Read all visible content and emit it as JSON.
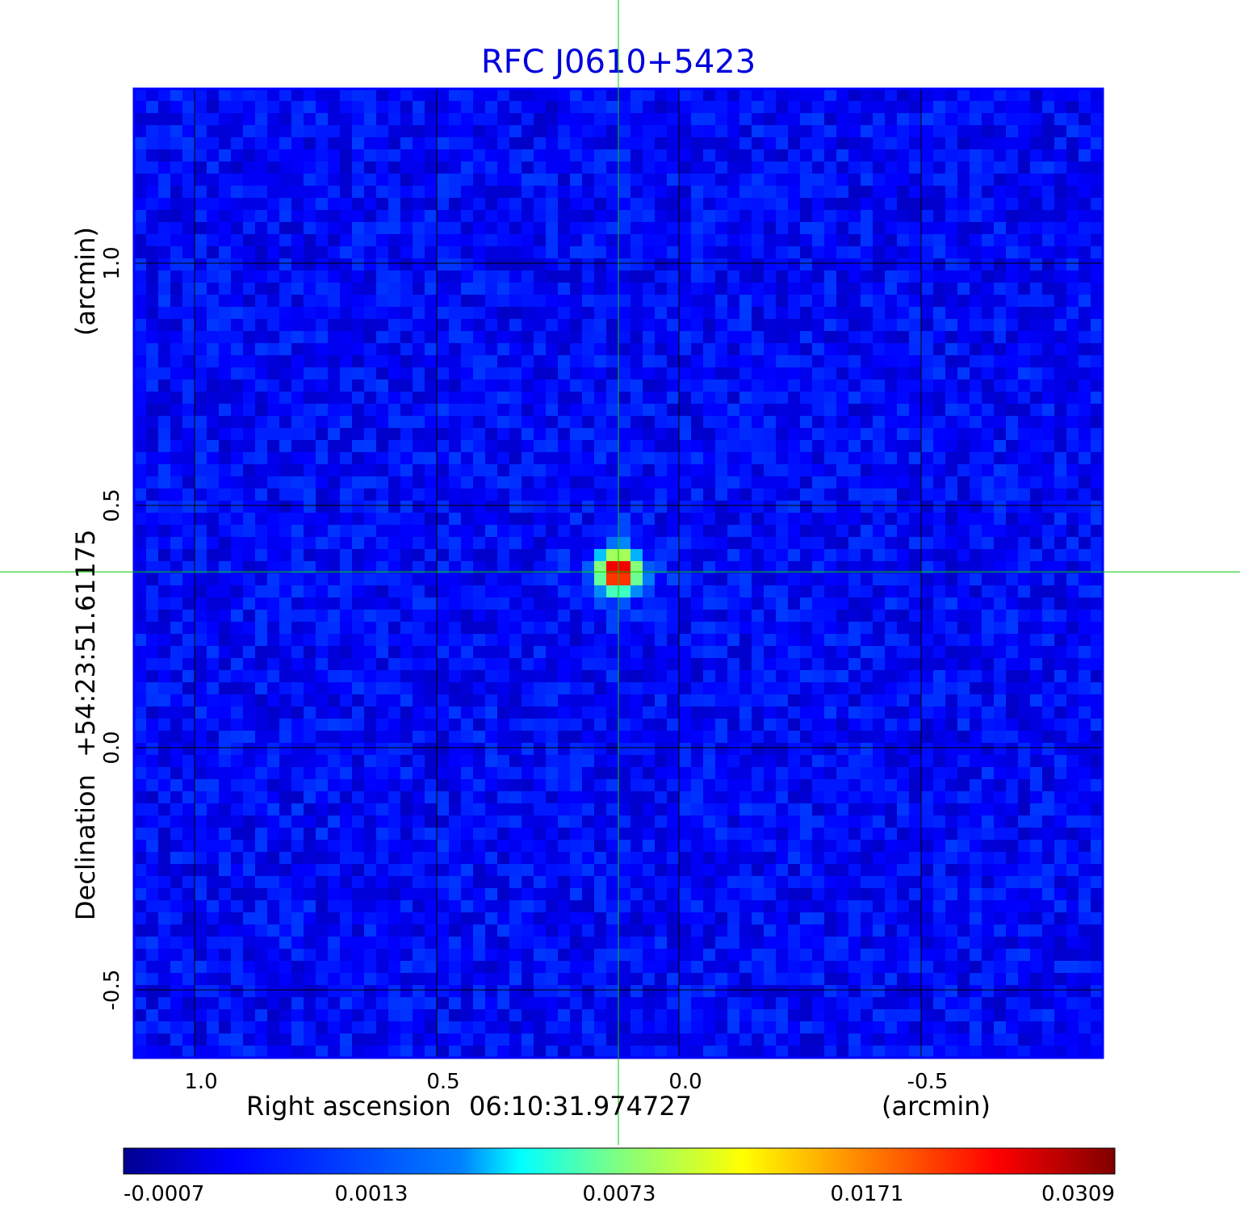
{
  "chart_data": {
    "type": "heatmap",
    "title": "RFC J0610+5423",
    "xlabel": "Right ascension",
    "x_center": "06:10:31.974727",
    "x_unit": "(arcmin)",
    "ylabel": "Declination",
    "y_center": "+54:23:51.61175",
    "y_unit": "(arcmin)",
    "xlim": [
      1.125,
      -0.875
    ],
    "ylim": [
      -0.64,
      1.36
    ],
    "x_ticks": [
      {
        "value": 1.0,
        "label": "1.0"
      },
      {
        "value": 0.5,
        "label": "0.5"
      },
      {
        "value": 0.0,
        "label": "0.0"
      },
      {
        "value": -0.5,
        "label": "-0.5"
      }
    ],
    "y_ticks": [
      {
        "value": 1.0,
        "label": "1.0"
      },
      {
        "value": 0.5,
        "label": "0.5"
      },
      {
        "value": 0.0,
        "label": "0.0"
      },
      {
        "value": -0.5,
        "label": "-0.5"
      }
    ],
    "grid": true,
    "crosshair": {
      "x": 0.125,
      "y": 0.363
    },
    "source": {
      "x": 0.125,
      "y": 0.363,
      "peak": 0.0309
    },
    "background_level": 0.0003,
    "colormap": "jet",
    "colorbar": {
      "position": "bottom",
      "min": -0.0007,
      "max": 0.0309,
      "tick_labels": [
        "-0.0007",
        "0.0013",
        "0.0073",
        "0.0171",
        "0.0309"
      ]
    },
    "colors": {
      "title": "#0000dd",
      "frame": "#0000ff",
      "grid": "#000000",
      "crosshair": "#00cc00"
    }
  }
}
